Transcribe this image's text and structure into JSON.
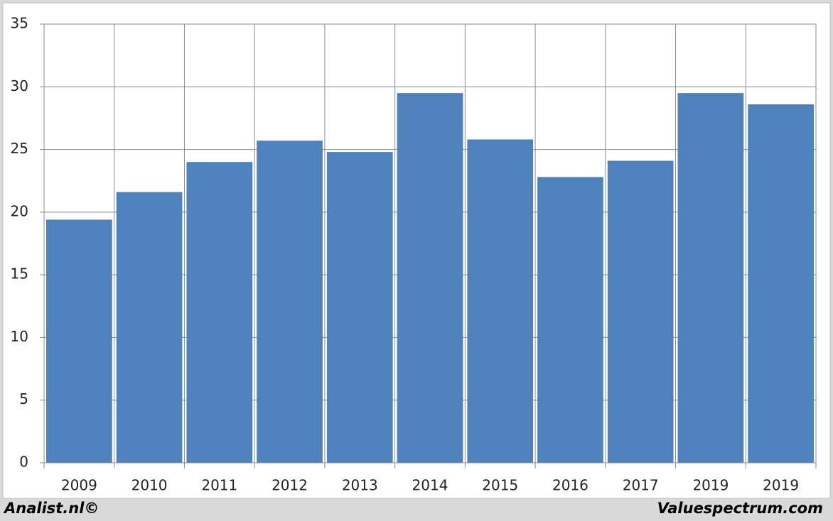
{
  "chart_data": {
    "type": "bar",
    "categories": [
      "2009",
      "2010",
      "2011",
      "2012",
      "2013",
      "2014",
      "2015",
      "2016",
      "2017",
      "2019",
      "2019"
    ],
    "values": [
      19.4,
      21.6,
      24.0,
      25.7,
      24.8,
      29.5,
      25.8,
      22.8,
      24.1,
      29.5,
      28.6
    ],
    "color": "#4f81bd",
    "ylim": [
      0,
      35
    ],
    "yticks": [
      0,
      5,
      10,
      15,
      20,
      25,
      30,
      35
    ],
    "grid": true,
    "annotations": [
      "Analist.nl©",
      "Valuespectrum.com"
    ]
  }
}
